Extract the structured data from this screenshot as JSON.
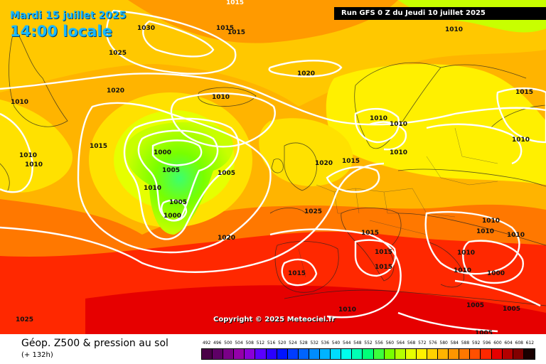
{
  "header": {
    "date": "Mardi 15 juillet 2025",
    "time": "14:00 locale",
    "run": "Run GFS 0 Z du Jeudi 10 juillet 2025"
  },
  "copyright": "Copyright © 2025 Meteociel.fr",
  "footer": {
    "title": "Géop. Z500 & pression au sol",
    "subtitle": "(+ 132h)"
  },
  "legend": {
    "values": [
      "492",
      "496",
      "500",
      "504",
      "508",
      "512",
      "516",
      "520",
      "524",
      "528",
      "532",
      "536",
      "540",
      "544",
      "548",
      "552",
      "556",
      "560",
      "564",
      "568",
      "572",
      "576",
      "580",
      "584",
      "588",
      "592",
      "596",
      "600",
      "604",
      "608",
      "612"
    ],
    "colors": [
      "#4a0048",
      "#5e0066",
      "#7a0088",
      "#9400aa",
      "#8a00d8",
      "#5a00ff",
      "#2a00ff",
      "#0014ff",
      "#003cff",
      "#0064ff",
      "#008cff",
      "#00b4ff",
      "#00dcff",
      "#00ffee",
      "#00ffb4",
      "#00ff78",
      "#3cff3c",
      "#78ff00",
      "#b4ff00",
      "#e6ff00",
      "#fff000",
      "#ffd200",
      "#ffb400",
      "#ff9600",
      "#ff7800",
      "#ff5000",
      "#ff2800",
      "#e60000",
      "#b40000",
      "#820000",
      "#1a0000"
    ]
  },
  "isobar_labels": [
    "1015",
    "1030",
    "1015",
    "1015",
    "1010",
    "1025",
    "1020",
    "1010",
    "1020",
    "1010",
    "1015",
    "1010",
    "1010",
    "1010",
    "1015",
    "1010",
    "1010",
    "1000",
    "1005",
    "1005",
    "1010",
    "1020",
    "1015",
    "1010",
    "1005",
    "1000",
    "1025",
    "1020",
    "1015",
    "1015",
    "1015",
    "1015",
    "1010",
    "1010",
    "1010",
    "1010",
    "1010",
    "1000",
    "1005",
    "1005",
    "1010",
    "1005",
    "1025"
  ]
}
